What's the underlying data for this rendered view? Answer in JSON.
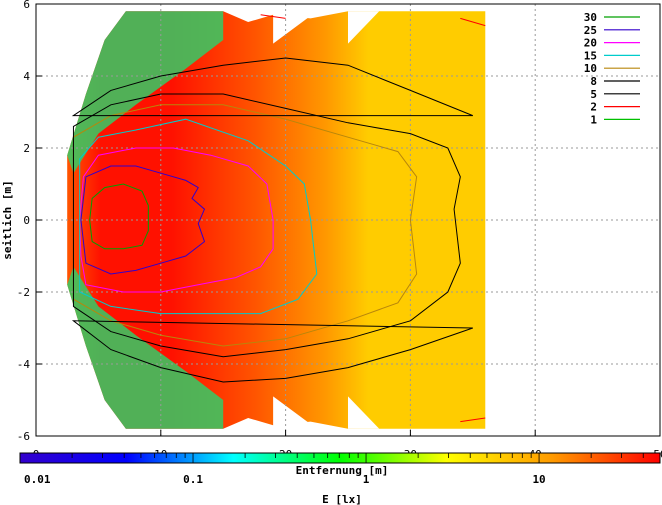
{
  "chart_data": {
    "type": "heatmap",
    "title": "",
    "xlabel": "Entfernung [m]",
    "ylabel": "seitlich [m]",
    "colorbar_label": "E [lx]",
    "xlim": [
      0,
      50
    ],
    "ylim": [
      -6,
      6
    ],
    "x_ticks": [
      0,
      10,
      20,
      30,
      40,
      50
    ],
    "y_ticks": [
      -6,
      -4,
      -2,
      0,
      2,
      4,
      6
    ],
    "grid": true,
    "colorbar": {
      "scale": "log",
      "range": [
        0.01,
        50
      ],
      "ticks": [
        {
          "value": 0.01,
          "label": "0.01"
        },
        {
          "value": 0.1,
          "label": "0.1"
        },
        {
          "value": 1,
          "label": "1"
        },
        {
          "value": 10,
          "label": "10"
        }
      ],
      "colors": [
        "#3300cc",
        "#0000ff",
        "#00ffff",
        "#00ff00",
        "#ffff00",
        "#ff9900",
        "#ff0000"
      ]
    },
    "field_colors": {
      "low": "#33cc66",
      "mid_low": "#ffcc00",
      "mid": "#ff9900",
      "high": "#ff5500",
      "peak": "#ff1100"
    },
    "legend": {
      "position": "top-right",
      "entries": [
        {
          "label": "30",
          "color": "#00a000"
        },
        {
          "label": "25",
          "color": "#3300cc"
        },
        {
          "label": "20",
          "color": "#ff00ff"
        },
        {
          "label": "15",
          "color": "#00cccc"
        },
        {
          "label": "10",
          "color": "#b8860b"
        },
        {
          "label": "8",
          "color": "#000000"
        },
        {
          "label": "5",
          "color": "#000000"
        },
        {
          "label": "2",
          "color": "#ff0000"
        },
        {
          "label": "1",
          "color": "#00c000"
        }
      ]
    },
    "contours": [
      {
        "level": 30,
        "color": "#00a000",
        "points": [
          [
            4.5,
            -0.6
          ],
          [
            5.5,
            -0.8
          ],
          [
            7,
            -0.8
          ],
          [
            8.5,
            -0.7
          ],
          [
            9,
            -0.3
          ],
          [
            9,
            0.4
          ],
          [
            8.5,
            0.8
          ],
          [
            7,
            1
          ],
          [
            5.5,
            0.9
          ],
          [
            4.5,
            0.6
          ],
          [
            4.3,
            0
          ]
        ]
      },
      {
        "level": 25,
        "color": "#3300cc",
        "points": [
          [
            4,
            -1.2
          ],
          [
            6,
            -1.5
          ],
          [
            8,
            -1.4
          ],
          [
            10,
            -1.2
          ],
          [
            12,
            -1.0
          ],
          [
            13.5,
            -0.6
          ],
          [
            13,
            -0.1
          ],
          [
            13.5,
            0.3
          ],
          [
            12.5,
            0.6
          ],
          [
            13,
            0.9
          ],
          [
            12,
            1.1
          ],
          [
            10,
            1.3
          ],
          [
            8,
            1.5
          ],
          [
            6,
            1.5
          ],
          [
            4,
            1.2
          ],
          [
            3.6,
            0
          ]
        ]
      },
      {
        "level": 20,
        "color": "#ff00ff",
        "points": [
          [
            4,
            -1.8
          ],
          [
            7,
            -2.0
          ],
          [
            10,
            -2.0
          ],
          [
            13,
            -1.8
          ],
          [
            16,
            -1.6
          ],
          [
            18,
            -1.3
          ],
          [
            19,
            -0.8
          ],
          [
            19,
            0
          ],
          [
            18.5,
            1.0
          ],
          [
            17,
            1.5
          ],
          [
            14,
            1.8
          ],
          [
            11,
            2.0
          ],
          [
            8,
            2.0
          ],
          [
            5,
            1.8
          ],
          [
            3.8,
            1.2
          ],
          [
            3.5,
            0
          ],
          [
            3.6,
            -1.0
          ]
        ]
      },
      {
        "level": 15,
        "color": "#00cccc",
        "points": [
          [
            3.5,
            -2.0
          ],
          [
            6,
            -2.4
          ],
          [
            10,
            -2.6
          ],
          [
            14,
            -2.6
          ],
          [
            18,
            -2.6
          ],
          [
            21,
            -2.2
          ],
          [
            22.5,
            -1.5
          ],
          [
            22,
            0
          ],
          [
            21.5,
            1.0
          ],
          [
            20,
            1.5
          ],
          [
            17,
            2.2
          ],
          [
            12,
            2.8
          ],
          [
            8,
            2.5
          ],
          [
            5,
            2.3
          ],
          [
            3.5,
            1.7
          ]
        ]
      },
      {
        "level": 10,
        "color": "#b8860b",
        "points": [
          [
            3,
            -2.2
          ],
          [
            6,
            -2.8
          ],
          [
            10,
            -3.2
          ],
          [
            15,
            -3.5
          ],
          [
            20,
            -3.3
          ],
          [
            25,
            -2.8
          ],
          [
            29,
            -2.3
          ],
          [
            30.5,
            -1.5
          ],
          [
            30,
            0
          ],
          [
            30.5,
            1.2
          ],
          [
            29,
            1.9
          ],
          [
            25,
            2.3
          ],
          [
            20,
            2.8
          ],
          [
            15,
            3.2
          ],
          [
            10,
            3.2
          ],
          [
            6,
            2.9
          ],
          [
            3,
            2.3
          ]
        ]
      },
      {
        "level": 8,
        "color": "#000000",
        "points": [
          [
            3,
            -2.4
          ],
          [
            6,
            -3.1
          ],
          [
            10,
            -3.5
          ],
          [
            15,
            -3.8
          ],
          [
            20,
            -3.6
          ],
          [
            25,
            -3.3
          ],
          [
            30,
            -2.8
          ],
          [
            33,
            -2.0
          ],
          [
            34,
            -1.2
          ],
          [
            33.5,
            0.3
          ],
          [
            34,
            1.2
          ],
          [
            33,
            2.0
          ],
          [
            30,
            2.4
          ],
          [
            25,
            2.7
          ],
          [
            20,
            3.1
          ],
          [
            15,
            3.5
          ],
          [
            10,
            3.5
          ],
          [
            6,
            3.2
          ],
          [
            3,
            2.6
          ]
        ]
      },
      {
        "level": 5,
        "color": "#000000",
        "points": [
          [
            3,
            -2.8
          ],
          [
            6,
            -3.6
          ],
          [
            10,
            -4.1
          ],
          [
            15,
            -4.5
          ],
          [
            20,
            -4.4
          ],
          [
            25,
            -4.1
          ],
          [
            30,
            -3.6
          ],
          [
            35,
            -3.0
          ]
        ]
      },
      {
        "level": 5,
        "color": "#000000",
        "points": [
          [
            3,
            2.9
          ],
          [
            6,
            3.6
          ],
          [
            10,
            4.0
          ],
          [
            15,
            4.3
          ],
          [
            20,
            4.5
          ],
          [
            25,
            4.3
          ],
          [
            30,
            3.6
          ],
          [
            35,
            2.9
          ]
        ]
      },
      {
        "level": 2,
        "color": "#ff0000",
        "points": [
          [
            18,
            5.7
          ],
          [
            20,
            5.6
          ]
        ]
      },
      {
        "level": 2,
        "color": "#ff0000",
        "points": [
          [
            34,
            5.6
          ],
          [
            36,
            5.4
          ]
        ]
      },
      {
        "level": 2,
        "color": "#ff0000",
        "points": [
          [
            34,
            -5.6
          ],
          [
            36,
            -5.5
          ]
        ]
      }
    ]
  }
}
